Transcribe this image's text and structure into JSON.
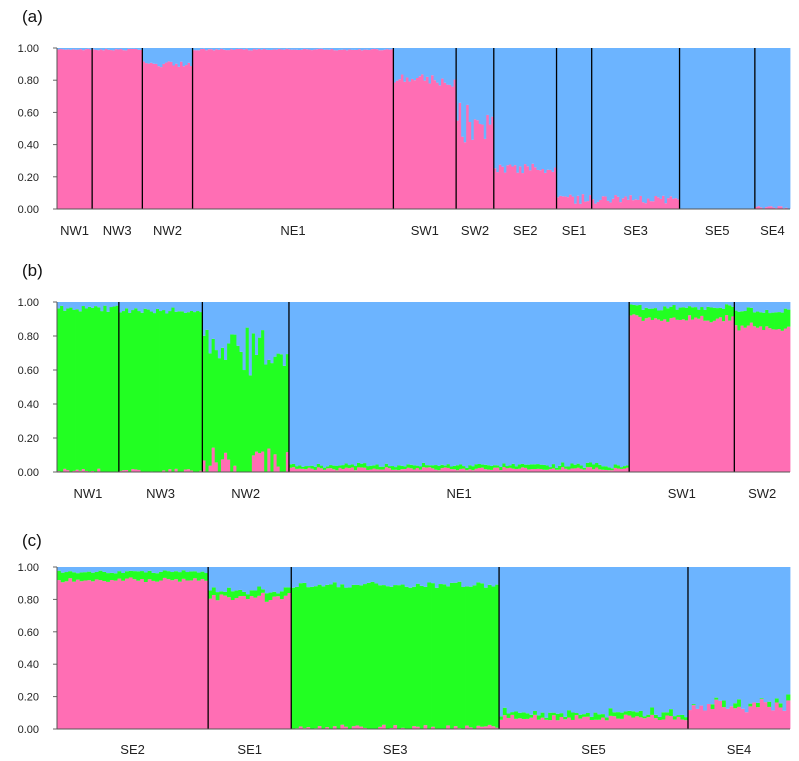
{
  "colors": {
    "pink": "#ff6eb4",
    "blue": "#6cb4ff",
    "green": "#22ff22",
    "divider": "#000000"
  },
  "chart_data": [
    {
      "type": "bar",
      "stacked": true,
      "panel_label": "(a)",
      "ylim": [
        0,
        1
      ],
      "yticks": [
        "0.00",
        "0.20",
        "0.40",
        "0.60",
        "0.80",
        "1.00"
      ],
      "series_colors": [
        "pink",
        "blue"
      ],
      "populations": [
        {
          "label": "NW1",
          "n": 14,
          "mean": [
            0.99,
            0.01
          ],
          "spread": 0.005
        },
        {
          "label": "NW3",
          "n": 20,
          "mean": [
            0.99,
            0.01
          ],
          "spread": 0.005
        },
        {
          "label": "NW2",
          "n": 20,
          "mean": [
            0.9,
            0.1
          ],
          "spread": 0.02
        },
        {
          "label": "NE1",
          "n": 80,
          "mean": [
            0.99,
            0.01
          ],
          "spread": 0.005
        },
        {
          "label": "SW1",
          "n": 25,
          "mean": [
            0.8,
            0.2
          ],
          "spread": 0.05
        },
        {
          "label": "SW2",
          "n": 15,
          "mean": [
            0.55,
            0.45
          ],
          "spread": 0.15
        },
        {
          "label": "SE2",
          "n": 25,
          "mean": [
            0.25,
            0.75
          ],
          "spread": 0.04
        },
        {
          "label": "SE1",
          "n": 14,
          "mean": [
            0.07,
            0.93
          ],
          "spread": 0.04
        },
        {
          "label": "SE3",
          "n": 35,
          "mean": [
            0.06,
            0.94
          ],
          "spread": 0.03
        },
        {
          "label": "SE5",
          "n": 30,
          "mean": [
            0.0,
            1.0
          ],
          "spread": 0.002
        },
        {
          "label": "SE4",
          "n": 14,
          "mean": [
            0.01,
            0.99
          ],
          "spread": 0.01
        }
      ]
    },
    {
      "type": "bar",
      "stacked": true,
      "panel_label": "(b)",
      "ylim": [
        0,
        1
      ],
      "yticks": [
        "0.00",
        "0.20",
        "0.40",
        "0.60",
        "0.80",
        "1.00"
      ],
      "series_colors": [
        "pink",
        "green",
        "blue"
      ],
      "populations": [
        {
          "label": "NW1",
          "n": 20,
          "mean": [
            0.0,
            0.96,
            0.04
          ],
          "spread": 0.02
        },
        {
          "label": "NW3",
          "n": 27,
          "mean": [
            0.0,
            0.95,
            0.05
          ],
          "spread": 0.02
        },
        {
          "label": "NW2",
          "n": 28,
          "mean": [
            0.0,
            0.7,
            0.3
          ],
          "spread": 0.18
        },
        {
          "label": "NE1",
          "n": 110,
          "mean": [
            0.02,
            0.02,
            0.96
          ],
          "spread": 0.01
        },
        {
          "label": "SW1",
          "n": 34,
          "mean": [
            0.9,
            0.07,
            0.03
          ],
          "spread": 0.02
        },
        {
          "label": "SW2",
          "n": 18,
          "mean": [
            0.85,
            0.1,
            0.05
          ],
          "spread": 0.02
        }
      ]
    },
    {
      "type": "bar",
      "stacked": true,
      "panel_label": "(c)",
      "ylim": [
        0,
        1
      ],
      "yticks": [
        "0.00",
        "0.20",
        "0.40",
        "0.60",
        "0.80",
        "1.00"
      ],
      "series_colors": [
        "pink",
        "green",
        "blue"
      ],
      "populations": [
        {
          "label": "SE2",
          "n": 40,
          "mean": [
            0.92,
            0.05,
            0.03
          ],
          "spread": 0.01
        },
        {
          "label": "SE1",
          "n": 22,
          "mean": [
            0.82,
            0.04,
            0.14
          ],
          "spread": 0.03
        },
        {
          "label": "SE3",
          "n": 55,
          "mean": [
            0.01,
            0.88,
            0.11
          ],
          "spread": 0.02
        },
        {
          "label": "SE5",
          "n": 50,
          "mean": [
            0.07,
            0.03,
            0.9
          ],
          "spread": 0.02
        },
        {
          "label": "SE4",
          "n": 27,
          "mean": [
            0.15,
            0.0,
            0.85
          ],
          "spread": 0.05
        }
      ]
    }
  ]
}
